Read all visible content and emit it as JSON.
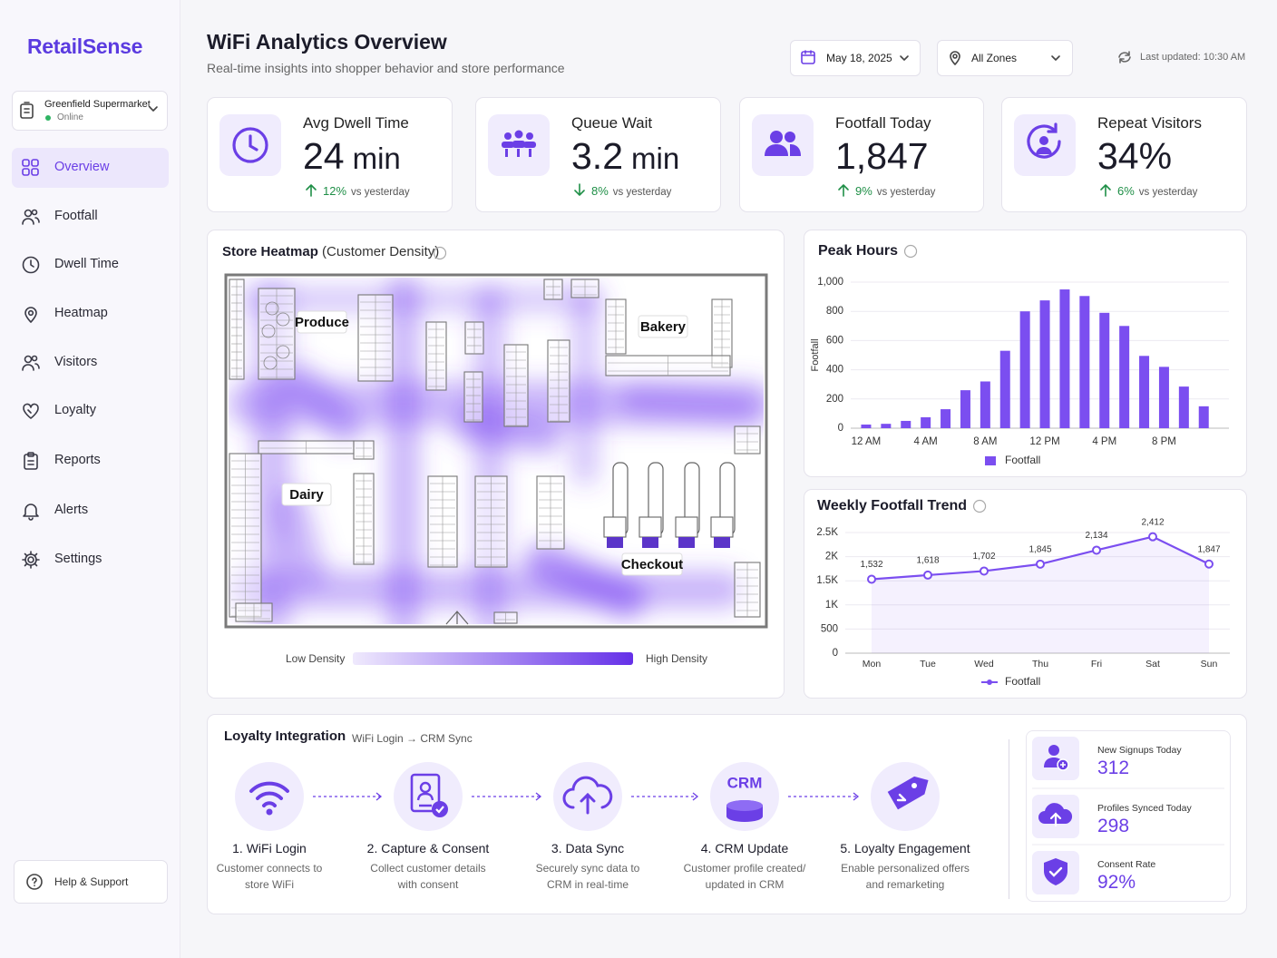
{
  "brand": "RetailSense",
  "store": {
    "name": "Greenfield Supermarket",
    "status": "Online"
  },
  "nav": {
    "items": [
      "Overview",
      "Footfall",
      "Dwell Time",
      "Heatmap",
      "Visitors",
      "Loyalty",
      "Reports",
      "Alerts",
      "Settings"
    ],
    "active": 0
  },
  "help": "Help & Support",
  "header": {
    "title": "WiFi Analytics Overview",
    "subtitle": "Real-time insights into shopper behavior and store performance",
    "date": "May 18, 2025",
    "zone": "All Zones",
    "updated": "Last updated: 10:30 AM"
  },
  "kpis": [
    {
      "label": "Avg Dwell Time",
      "value": "24",
      "unit": "min",
      "change": "12%",
      "change_note": "vs yesterday",
      "direction": "up"
    },
    {
      "label": "Queue Wait",
      "value": "3.2",
      "unit": "min",
      "change": "8%",
      "change_note": "vs yesterday",
      "direction": "down"
    },
    {
      "label": "Footfall Today",
      "value": "1,847",
      "change": "9%",
      "change_note": "vs yesterday",
      "direction": "up"
    },
    {
      "label": "Repeat Visitors",
      "value": "34%",
      "change": "6%",
      "change_note": "vs yesterday",
      "direction": "up"
    }
  ],
  "heatmap": {
    "title": "Store Heatmap",
    "subtitle": "(Customer Density)",
    "zones": [
      "Produce",
      "Bakery",
      "Dairy",
      "Checkout"
    ],
    "legend_low": "Low Density",
    "legend_high": "High Density"
  },
  "chart_data": [
    {
      "type": "bar",
      "title": "Peak Hours",
      "y_label": "Footfall",
      "categories": [
        "12 AM",
        null,
        null,
        "4 AM",
        null,
        null,
        "8 AM",
        null,
        null,
        "12 PM",
        null,
        null,
        "4 PM",
        null,
        null,
        "8 PM",
        null,
        null
      ],
      "series": [
        {
          "name": "Footfall",
          "color": "#7b4ef0",
          "values": [
            25,
            30,
            50,
            75,
            130,
            260,
            320,
            530,
            800,
            875,
            950,
            905,
            790,
            700,
            495,
            420,
            285,
            150
          ]
        }
      ],
      "ylim": [
        0,
        1000
      ],
      "yticks": [
        0,
        200,
        400,
        600,
        800,
        {
          "value": 1000,
          "label": "1,000"
        }
      ],
      "grid": true
    },
    {
      "type": "line",
      "title": "Weekly Footfall Trend",
      "categories": [
        "Mon",
        "Tue",
        "Wed",
        "Thu",
        "Fri",
        "Sat",
        "Sun"
      ],
      "series": [
        {
          "name": "Footfall",
          "color": "#7b4ef0",
          "values": [
            1532,
            1618,
            1702,
            1845,
            2134,
            2412,
            1847
          ],
          "value_labels": [
            "1,532",
            "1,618",
            "1,702",
            "1,845",
            "2,134",
            "2,412",
            "1,847"
          ]
        }
      ],
      "ylim": [
        0,
        2500
      ],
      "yticks": [
        0,
        500,
        {
          "value": 1000,
          "label": "1K"
        },
        {
          "value": 1500,
          "label": "1.5K"
        },
        {
          "value": 2000,
          "label": "2K"
        },
        {
          "value": 2500,
          "label": "2.5K"
        }
      ],
      "grid": true
    }
  ],
  "loyalty": {
    "title": "Loyalty Integration",
    "subtitle": "WiFi Login → CRM Sync",
    "steps": [
      {
        "title": "1. WiFi Login",
        "desc": [
          "Customer connects to",
          "store WiFi"
        ]
      },
      {
        "title": "2. Capture & Consent",
        "desc": [
          "Collect customer details",
          "with consent"
        ]
      },
      {
        "title": "3. Data Sync",
        "desc": [
          "Securely sync data to",
          "CRM in real-time"
        ]
      },
      {
        "title": "4. CRM Update",
        "icon_text": "CRM",
        "desc": [
          "Customer profile created/",
          "updated in CRM"
        ]
      },
      {
        "title": "5. Loyalty Engagement",
        "desc": [
          "Enable personalized offers",
          "and remarketing"
        ]
      }
    ],
    "stats": [
      {
        "label": "New Signups Today",
        "value": "312"
      },
      {
        "label": "Profiles Synced Today",
        "value": "298"
      },
      {
        "label": "Consent Rate",
        "value": "92%"
      }
    ]
  }
}
